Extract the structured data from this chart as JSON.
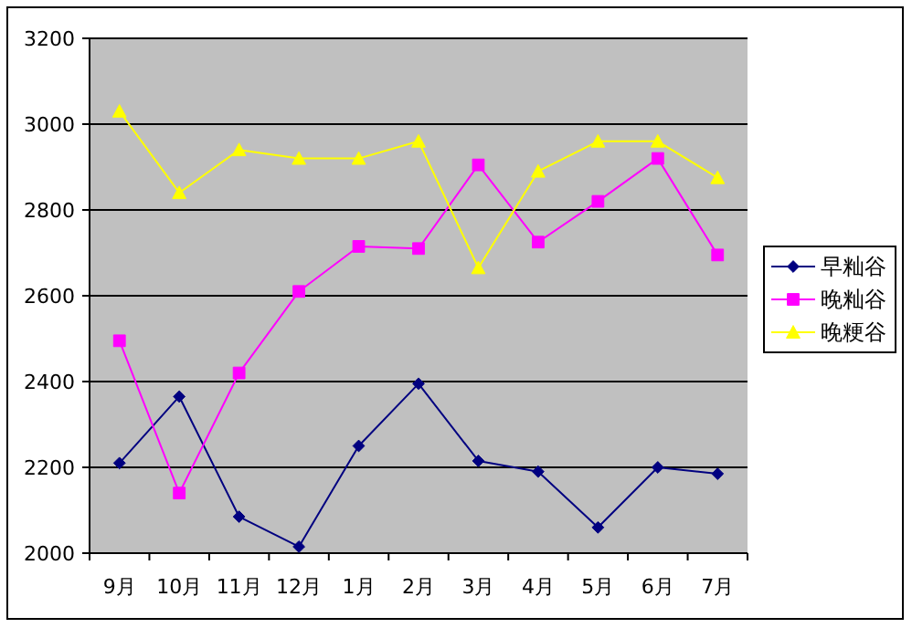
{
  "chart_data": {
    "type": "line",
    "categories": [
      "9月",
      "10月",
      "11月",
      "12月",
      "1月",
      "2月",
      "3月",
      "4月",
      "5月",
      "6月",
      "7月"
    ],
    "series": [
      {
        "name": "早籼谷",
        "color": "#000080",
        "marker": "diamond",
        "values": [
          2210,
          2365,
          2085,
          2015,
          2250,
          2395,
          2215,
          2190,
          2060,
          2200,
          2185
        ]
      },
      {
        "name": "晚籼谷",
        "color": "#ff00ff",
        "marker": "square",
        "values": [
          2495,
          2140,
          2420,
          2610,
          2715,
          2710,
          2905,
          2725,
          2820,
          2920,
          2695
        ]
      },
      {
        "name": "晚粳谷",
        "color": "#ffff00",
        "marker": "triangle",
        "values": [
          3030,
          2840,
          2940,
          2920,
          2920,
          2960,
          2665,
          2890,
          2960,
          2960,
          2875
        ]
      }
    ],
    "ylim": [
      2000,
      3200
    ],
    "yticks": [
      2000,
      2200,
      2400,
      2600,
      2800,
      3000,
      3200
    ],
    "grid": "y",
    "legend": "right"
  }
}
